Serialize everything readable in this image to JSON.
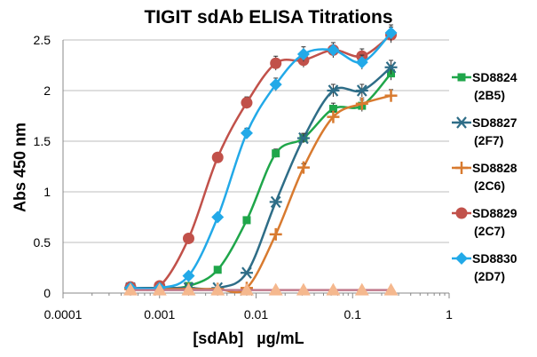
{
  "chart_data": {
    "type": "line",
    "title": "TIGIT sdAb ELISA Titrations",
    "xlabel": "[sdAb]   µg/mL",
    "ylabel": "Abs 450 nm",
    "x_scale": "log",
    "xlim": [
      0.0001,
      1
    ],
    "ylim": [
      0,
      2.5
    ],
    "x_ticks": [
      "0.0001",
      "0.001",
      "0.01",
      "0.1",
      "1"
    ],
    "y_ticks": [
      "0",
      "0.5",
      "1",
      "1.5",
      "2",
      "2.5"
    ],
    "grid": "horizontal",
    "legend_position": "right",
    "x": [
      0.0005,
      0.001,
      0.002,
      0.004,
      0.008,
      0.016,
      0.031,
      0.063,
      0.125,
      0.25
    ],
    "series": [
      {
        "name": "SD8824",
        "label_line2": "(2B5)",
        "marker": "square",
        "color": "#1fa64a",
        "values": [
          0.05,
          0.05,
          0.07,
          0.23,
          0.72,
          1.38,
          1.53,
          1.82,
          1.85,
          2.17
        ]
      },
      {
        "name": "SD8827",
        "label_line2": "(2F7)",
        "marker": "asterisk",
        "color": "#2e6d87",
        "values": [
          0.05,
          0.05,
          0.05,
          0.05,
          0.2,
          0.9,
          1.53,
          2.0,
          2.0,
          2.23
        ]
      },
      {
        "name": "SD8828",
        "label_line2": "(2C6)",
        "marker": "plus",
        "color": "#d87a2f",
        "values": [
          0.04,
          0.04,
          0.04,
          0.04,
          0.05,
          0.58,
          1.24,
          1.74,
          1.87,
          1.95
        ]
      },
      {
        "name": "SD8829",
        "label_line2": "(2C7)",
        "marker": "circle",
        "color": "#c1514a",
        "values": [
          0.06,
          0.07,
          0.54,
          1.34,
          1.88,
          2.27,
          2.3,
          2.4,
          2.34,
          2.55
        ]
      },
      {
        "name": "SD8830",
        "label_line2": "(2D7)",
        "marker": "diamond",
        "color": "#22a9e8",
        "values": [
          0.05,
          0.05,
          0.17,
          0.75,
          1.58,
          2.06,
          2.36,
          2.4,
          2.28,
          2.57
        ]
      },
      {
        "name": "",
        "marker": "triangle",
        "color": "#f5b88e",
        "line_color": "#c17a8d",
        "values": [
          0.03,
          0.03,
          0.03,
          0.03,
          0.03,
          0.03,
          0.03,
          0.03,
          0.03,
          0.03
        ]
      }
    ]
  }
}
